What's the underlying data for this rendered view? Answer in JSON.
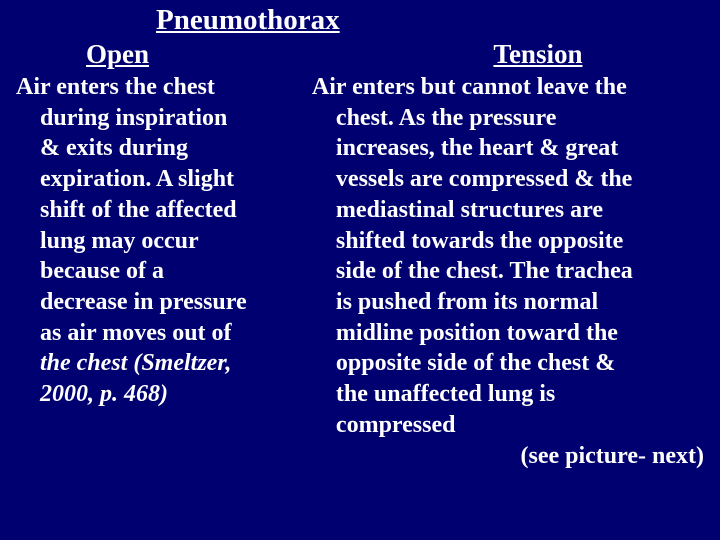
{
  "background_color": "#000070",
  "text_color": "#ffffff",
  "font_family": "Times New Roman",
  "title": "Pneumothorax",
  "title_fontsize": 29,
  "subhead_fontsize": 27,
  "body_fontsize": 24,
  "left": {
    "heading": "Open",
    "lead": "Air enters the chest",
    "body_lines": [
      "during inspiration",
      "& exits during",
      "expiration.  A slight",
      "shift of the affected",
      "lung may occur",
      "because of a",
      "decrease in pressure",
      "as air moves out of"
    ],
    "cite_line1": "the chest  (Smeltzer,",
    "cite_line2": "2000, p. 468)"
  },
  "right": {
    "heading": "Tension",
    "lead": "Air enters but cannot leave the",
    "body_lines": [
      "chest.  As the pressure",
      "increases, the heart & great",
      "vessels are compressed & the",
      "mediastinal structures are",
      "shifted towards the opposite",
      "side of the chest.  The trachea",
      "is pushed from its normal",
      "midline position toward the",
      "opposite side of the chest &",
      "the unaffected lung is",
      "compressed"
    ],
    "footer": "(see picture- next)"
  }
}
